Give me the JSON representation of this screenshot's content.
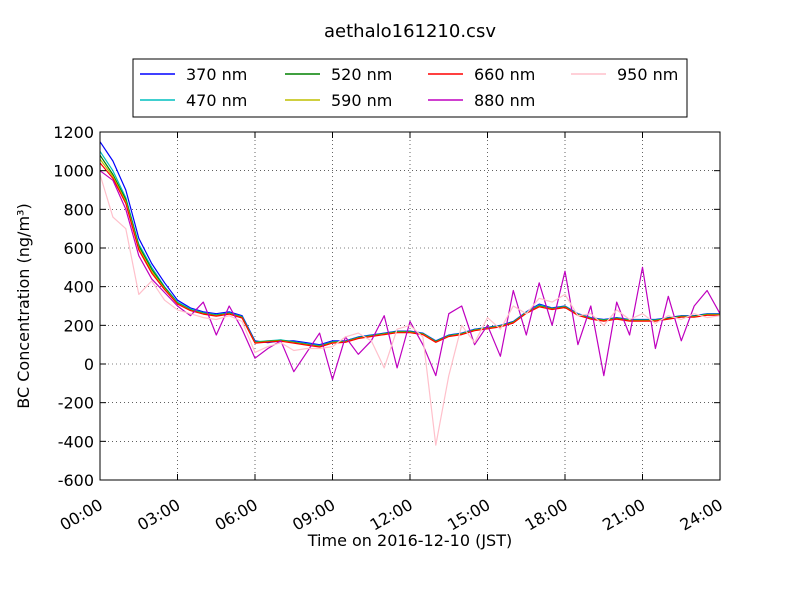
{
  "chart_data": {
    "type": "line",
    "title": "aethalo161210.csv",
    "xlabel": "Time on 2016-12-10 (JST)",
    "ylabel": "BC Concentration (ng/m³)",
    "ylim": [
      -600,
      1200
    ],
    "xlim": [
      "00:00",
      "24:00"
    ],
    "yticks": [
      "-600",
      "-400",
      "-200",
      "0",
      "200",
      "400",
      "600",
      "800",
      "1000",
      "1200"
    ],
    "xticks": [
      "00:00",
      "03:00",
      "06:00",
      "09:00",
      "12:00",
      "15:00",
      "18:00",
      "21:00",
      "24:00"
    ],
    "grid": true,
    "legend_position": "top-center",
    "x": [
      "00:00",
      "00:30",
      "01:00",
      "01:30",
      "02:00",
      "02:30",
      "03:00",
      "03:30",
      "04:00",
      "04:30",
      "05:00",
      "05:30",
      "06:00",
      "06:30",
      "07:00",
      "07:30",
      "08:00",
      "08:30",
      "09:00",
      "09:30",
      "10:00",
      "10:30",
      "11:00",
      "11:30",
      "12:00",
      "12:30",
      "13:00",
      "13:30",
      "14:00",
      "14:30",
      "15:00",
      "15:30",
      "16:00",
      "16:30",
      "17:00",
      "17:30",
      "18:00",
      "18:30",
      "19:00",
      "19:30",
      "20:00",
      "20:30",
      "21:00",
      "21:30",
      "22:00",
      "22:30",
      "23:00",
      "23:30",
      "24:00"
    ],
    "series": [
      {
        "name": "370 nm",
        "color": "#0000ff",
        "values": [
          1150,
          1050,
          900,
          650,
          520,
          420,
          330,
          290,
          270,
          260,
          270,
          250,
          120,
          110,
          120,
          120,
          110,
          100,
          120,
          120,
          140,
          150,
          160,
          170,
          170,
          160,
          120,
          150,
          160,
          180,
          190,
          200,
          220,
          270,
          310,
          290,
          300,
          260,
          240,
          230,
          240,
          230,
          230,
          230,
          240,
          250,
          250,
          260,
          260
        ]
      },
      {
        "name": "470 nm",
        "color": "#00bfbf",
        "values": [
          1100,
          1000,
          860,
          620,
          500,
          400,
          320,
          285,
          265,
          255,
          265,
          245,
          115,
          120,
          125,
          115,
          105,
          95,
          115,
          118,
          138,
          148,
          158,
          168,
          168,
          158,
          118,
          148,
          158,
          178,
          188,
          198,
          218,
          268,
          305,
          288,
          298,
          258,
          238,
          228,
          238,
          228,
          228,
          228,
          238,
          248,
          248,
          258,
          258
        ]
      },
      {
        "name": "520 nm",
        "color": "#008000",
        "values": [
          1080,
          980,
          850,
          610,
          490,
          395,
          315,
          280,
          262,
          252,
          262,
          242,
          112,
          118,
          122,
          112,
          102,
          92,
          112,
          116,
          136,
          146,
          156,
          166,
          166,
          156,
          116,
          146,
          156,
          176,
          186,
          196,
          216,
          266,
          300,
          286,
          296,
          256,
          236,
          226,
          236,
          226,
          226,
          226,
          236,
          246,
          246,
          256,
          256
        ]
      },
      {
        "name": "590 nm",
        "color": "#bfbf00",
        "values": [
          1060,
          970,
          840,
          600,
          480,
          390,
          312,
          278,
          260,
          250,
          260,
          240,
          110,
          116,
          120,
          110,
          100,
          90,
          110,
          114,
          134,
          144,
          154,
          164,
          164,
          154,
          114,
          144,
          154,
          174,
          184,
          194,
          214,
          264,
          298,
          284,
          294,
          254,
          234,
          224,
          234,
          224,
          224,
          224,
          234,
          244,
          244,
          254,
          254
        ]
      },
      {
        "name": "660 nm",
        "color": "#ff0000",
        "values": [
          1040,
          960,
          830,
          590,
          470,
          385,
          310,
          276,
          258,
          248,
          258,
          238,
          108,
          114,
          118,
          108,
          98,
          88,
          108,
          112,
          132,
          142,
          152,
          162,
          162,
          152,
          112,
          142,
          152,
          172,
          182,
          192,
          212,
          262,
          296,
          282,
          292,
          252,
          232,
          222,
          232,
          222,
          222,
          222,
          232,
          242,
          242,
          252,
          252
        ]
      },
      {
        "name": "880 nm",
        "color": "#bf00bf",
        "values": [
          1000,
          950,
          800,
          560,
          440,
          370,
          300,
          250,
          320,
          150,
          300,
          180,
          30,
          80,
          120,
          -40,
          60,
          160,
          -80,
          140,
          50,
          120,
          250,
          -20,
          220,
          100,
          -60,
          260,
          300,
          100,
          200,
          40,
          380,
          150,
          420,
          200,
          480,
          100,
          300,
          -60,
          320,
          150,
          500,
          80,
          350,
          120,
          300,
          380,
          260
        ]
      },
      {
        "name": "950 nm",
        "color": "#ffc0cb",
        "values": [
          980,
          760,
          700,
          360,
          430,
          330,
          280,
          260,
          240,
          230,
          250,
          220,
          60,
          90,
          110,
          70,
          80,
          80,
          90,
          140,
          160,
          120,
          -20,
          180,
          200,
          140,
          -420,
          -60,
          200,
          110,
          240,
          180,
          300,
          260,
          340,
          320,
          360,
          250,
          260,
          200,
          280,
          230,
          260,
          210,
          250,
          230,
          260,
          240,
          250
        ]
      }
    ]
  }
}
